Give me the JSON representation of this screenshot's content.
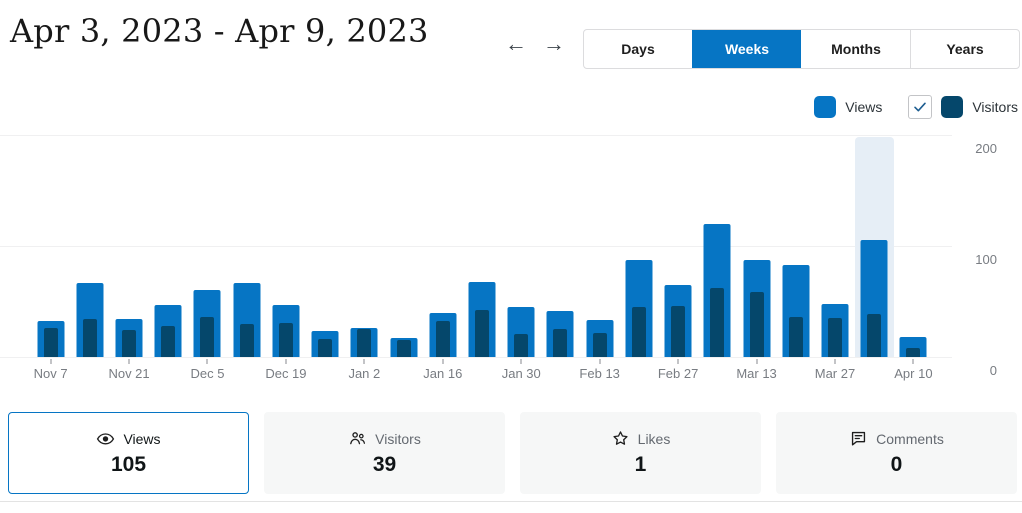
{
  "header": {
    "title": "Apr 3, 2023 - Apr 9, 2023",
    "prev_label": "←",
    "next_label": "→",
    "tabs": [
      {
        "label": "Days",
        "active": false
      },
      {
        "label": "Weeks",
        "active": true
      },
      {
        "label": "Months",
        "active": false
      },
      {
        "label": "Years",
        "active": false
      }
    ],
    "active_tab_color": "#0675C4"
  },
  "legend": {
    "views_label": "Views",
    "views_color": "#0675C4",
    "visitors_label": "Visitors",
    "visitors_color": "#05476B",
    "visitors_checkbox_checked": true
  },
  "chart_data": {
    "type": "bar",
    "x": [
      "Nov 7",
      "Nov 14",
      "Nov 21",
      "Nov 28",
      "Dec 5",
      "Dec 12",
      "Dec 19",
      "Dec 26",
      "Jan 2",
      "Jan 9",
      "Jan 16",
      "Jan 23",
      "Jan 30",
      "Feb 6",
      "Feb 13",
      "Feb 20",
      "Feb 27",
      "Mar 6",
      "Mar 13",
      "Mar 20",
      "Mar 27",
      "Apr 3",
      "Apr 10"
    ],
    "labeled_tick_indices": [
      0,
      2,
      4,
      6,
      8,
      10,
      12,
      14,
      16,
      18,
      20,
      22
    ],
    "series": [
      {
        "name": "Views",
        "color": "#0675C4",
        "values": [
          32,
          67,
          34,
          47,
          60,
          67,
          47,
          23,
          26,
          17,
          40,
          68,
          45,
          41,
          33,
          87,
          65,
          120,
          87,
          83,
          48,
          105,
          18
        ]
      },
      {
        "name": "Visitors",
        "color": "#05476B",
        "values": [
          26,
          34,
          24,
          28,
          36,
          30,
          31,
          16,
          25,
          15,
          32,
          42,
          21,
          25,
          22,
          45,
          46,
          62,
          59,
          36,
          35,
          39,
          8
        ]
      }
    ],
    "ylim": [
      0,
      200
    ],
    "yticks": [
      0,
      100,
      200
    ],
    "grid": true,
    "legend_position": "top-right",
    "highlighted_index": 21,
    "highlight_color": "#E6EEF6"
  },
  "summary_cards": [
    {
      "label": "Views",
      "value": "105",
      "icon": "eye-icon",
      "selected": true
    },
    {
      "label": "Visitors",
      "value": "39",
      "icon": "people-icon",
      "selected": false
    },
    {
      "label": "Likes",
      "value": "1",
      "icon": "star-icon",
      "selected": false
    },
    {
      "label": "Comments",
      "value": "0",
      "icon": "comment-icon",
      "selected": false
    }
  ]
}
